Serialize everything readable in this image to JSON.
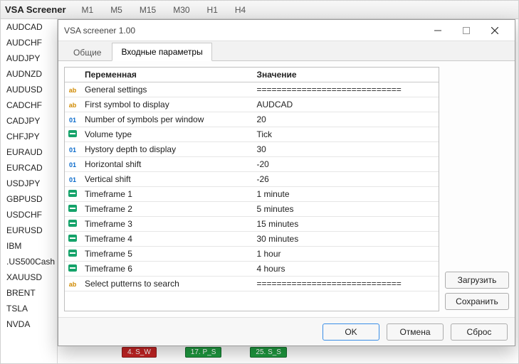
{
  "panel": {
    "title": "VSA Screener",
    "timeframes": [
      "M1",
      "M5",
      "M15",
      "M30",
      "H1",
      "H4"
    ]
  },
  "symbols": [
    "AUDCAD",
    "AUDCHF",
    "AUDJPY",
    "AUDNZD",
    "AUDUSD",
    "CADCHF",
    "CADJPY",
    "CHFJPY",
    "EURAUD",
    "EURCAD",
    "USDJPY",
    "GBPUSD",
    "USDCHF",
    "EURUSD",
    "IBM",
    ".US500Cash",
    "XAUUSD",
    "BRENT",
    "TSLA",
    "NVDA"
  ],
  "bottomBadges": [
    {
      "text": "4. S_W",
      "bg": "#c52424"
    },
    {
      "text": "17. P_S",
      "bg": "#1e9a3f"
    },
    {
      "text": "25. S_S",
      "bg": "#1e9a3f"
    }
  ],
  "modal": {
    "title": "VSA screener 1.00",
    "tabs": {
      "general": "Общие",
      "inputs": "Входные параметры",
      "activeIndex": 1
    },
    "columns": {
      "variable": "Переменная",
      "value": "Значение"
    },
    "sideButtons": {
      "load": "Загрузить",
      "save": "Сохранить"
    },
    "footer": {
      "ok": "OK",
      "cancel": "Отмена",
      "reset": "Сброс"
    },
    "rows": [
      {
        "icon": "ab",
        "variable": "General settings",
        "value": "============================="
      },
      {
        "icon": "ab",
        "variable": "First symbol to display",
        "value": "AUDCAD"
      },
      {
        "icon": "01",
        "variable": "Number of symbols per window",
        "value": "20"
      },
      {
        "icon": "en",
        "variable": "Volume type",
        "value": "Tick"
      },
      {
        "icon": "01",
        "variable": "Hystory depth to display",
        "value": "30"
      },
      {
        "icon": "01",
        "variable": "Horizontal shift",
        "value": "-20"
      },
      {
        "icon": "01",
        "variable": "Vertical shift",
        "value": "-26"
      },
      {
        "icon": "en",
        "variable": "Timeframe 1",
        "value": "1 minute"
      },
      {
        "icon": "en",
        "variable": "Timeframe 2",
        "value": "5 minutes"
      },
      {
        "icon": "en",
        "variable": "Timeframe 3",
        "value": "15 minutes"
      },
      {
        "icon": "en",
        "variable": "Timeframe 4",
        "value": "30 minutes"
      },
      {
        "icon": "en",
        "variable": "Timeframe 5",
        "value": "1 hour"
      },
      {
        "icon": "en",
        "variable": "Timeframe 6",
        "value": "4 hours"
      },
      {
        "icon": "ab",
        "variable": "Select putterns to search",
        "value": "============================="
      }
    ]
  },
  "colors": {
    "accent": "#3a8ee6",
    "border": "#c9c9c9",
    "rowBorder": "#e6e6e6"
  }
}
